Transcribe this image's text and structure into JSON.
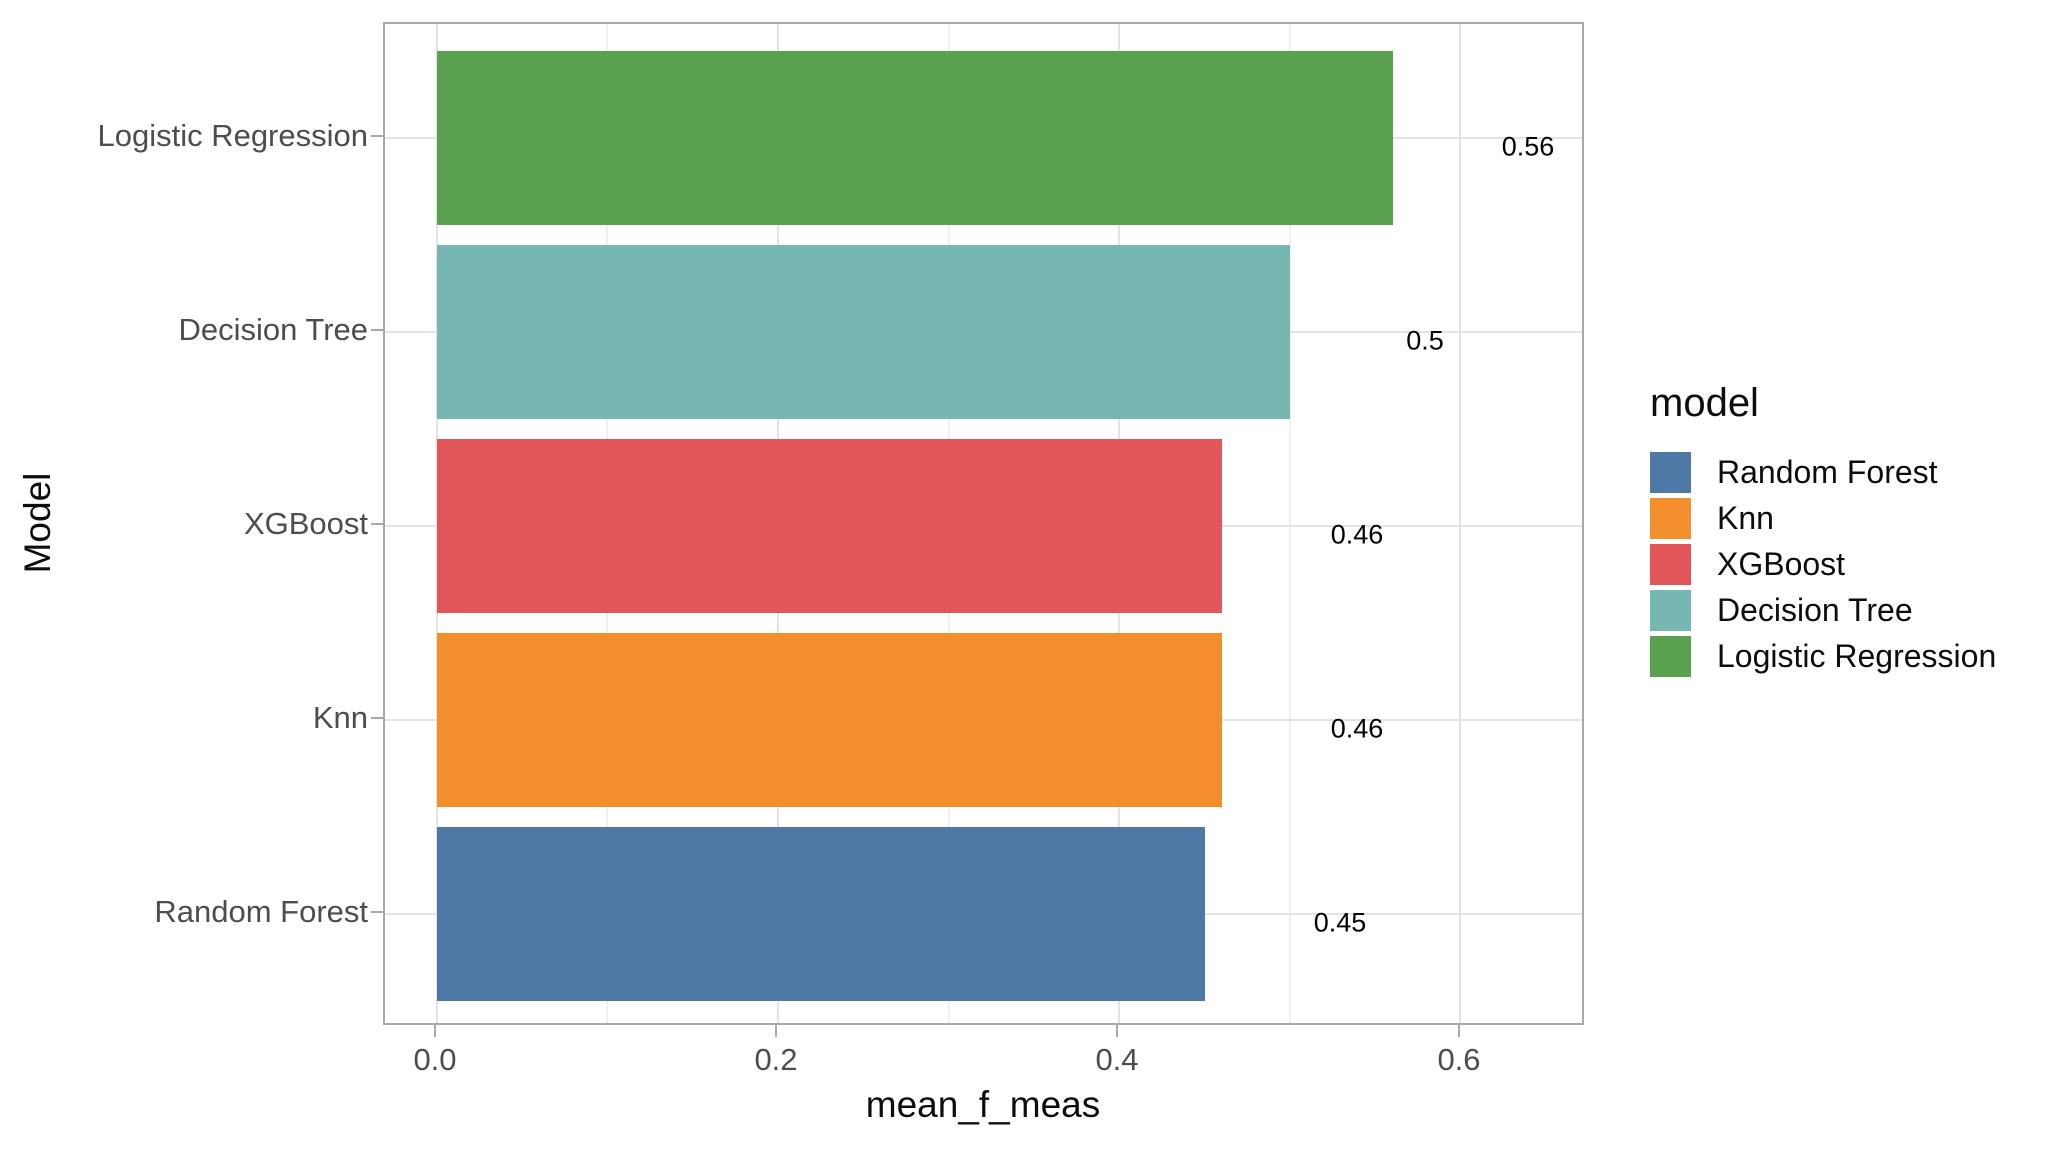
{
  "chart_data": {
    "type": "bar",
    "orientation": "horizontal",
    "xlabel": "mean_f_meas",
    "ylabel": "Model",
    "xlim": [
      -0.031,
      0.674
    ],
    "grid": "vertical major+minor and horizontal major gridlines, light gray on white",
    "legend_position": "right",
    "x_ticks": [
      {
        "label": "0.0",
        "value": 0.0
      },
      {
        "label": "0.2",
        "value": 0.2
      },
      {
        "label": "0.4",
        "value": 0.4
      },
      {
        "label": "0.6",
        "value": 0.6
      }
    ],
    "rows": [
      {
        "category": "Logistic Regression",
        "value": 0.56,
        "value_label": "0.56",
        "color": "#59A14F"
      },
      {
        "category": "Decision Tree",
        "value": 0.5,
        "value_label": "0.5",
        "color": "#76B7B2"
      },
      {
        "category": "XGBoost",
        "value": 0.46,
        "value_label": "0.46",
        "color": "#E15759"
      },
      {
        "category": "Knn",
        "value": 0.46,
        "value_label": "0.46",
        "color": "#F28E2B"
      },
      {
        "category": "Random Forest",
        "value": 0.45,
        "value_label": "0.45",
        "color": "#4E79A7"
      }
    ],
    "value_label_offset": 0.079,
    "legend": {
      "title": "model",
      "items": [
        {
          "label": "Random Forest",
          "color": "#4E79A7"
        },
        {
          "label": "Knn",
          "color": "#F28E2B"
        },
        {
          "label": "XGBoost",
          "color": "#E15759"
        },
        {
          "label": "Decision Tree",
          "color": "#76B7B2"
        },
        {
          "label": "Logistic Regression",
          "color": "#59A14F"
        }
      ]
    },
    "theme": {
      "background": "#ffffff",
      "panel_border": "#a9a9a9",
      "grid_major": "#e3e3e3",
      "grid_minor": "#f0f0f0",
      "tick_color": "#a9a9a9",
      "tick_label_color": "#4d4d4d",
      "title_color": "#0d0d0d",
      "value_label_color": "#000000"
    }
  }
}
